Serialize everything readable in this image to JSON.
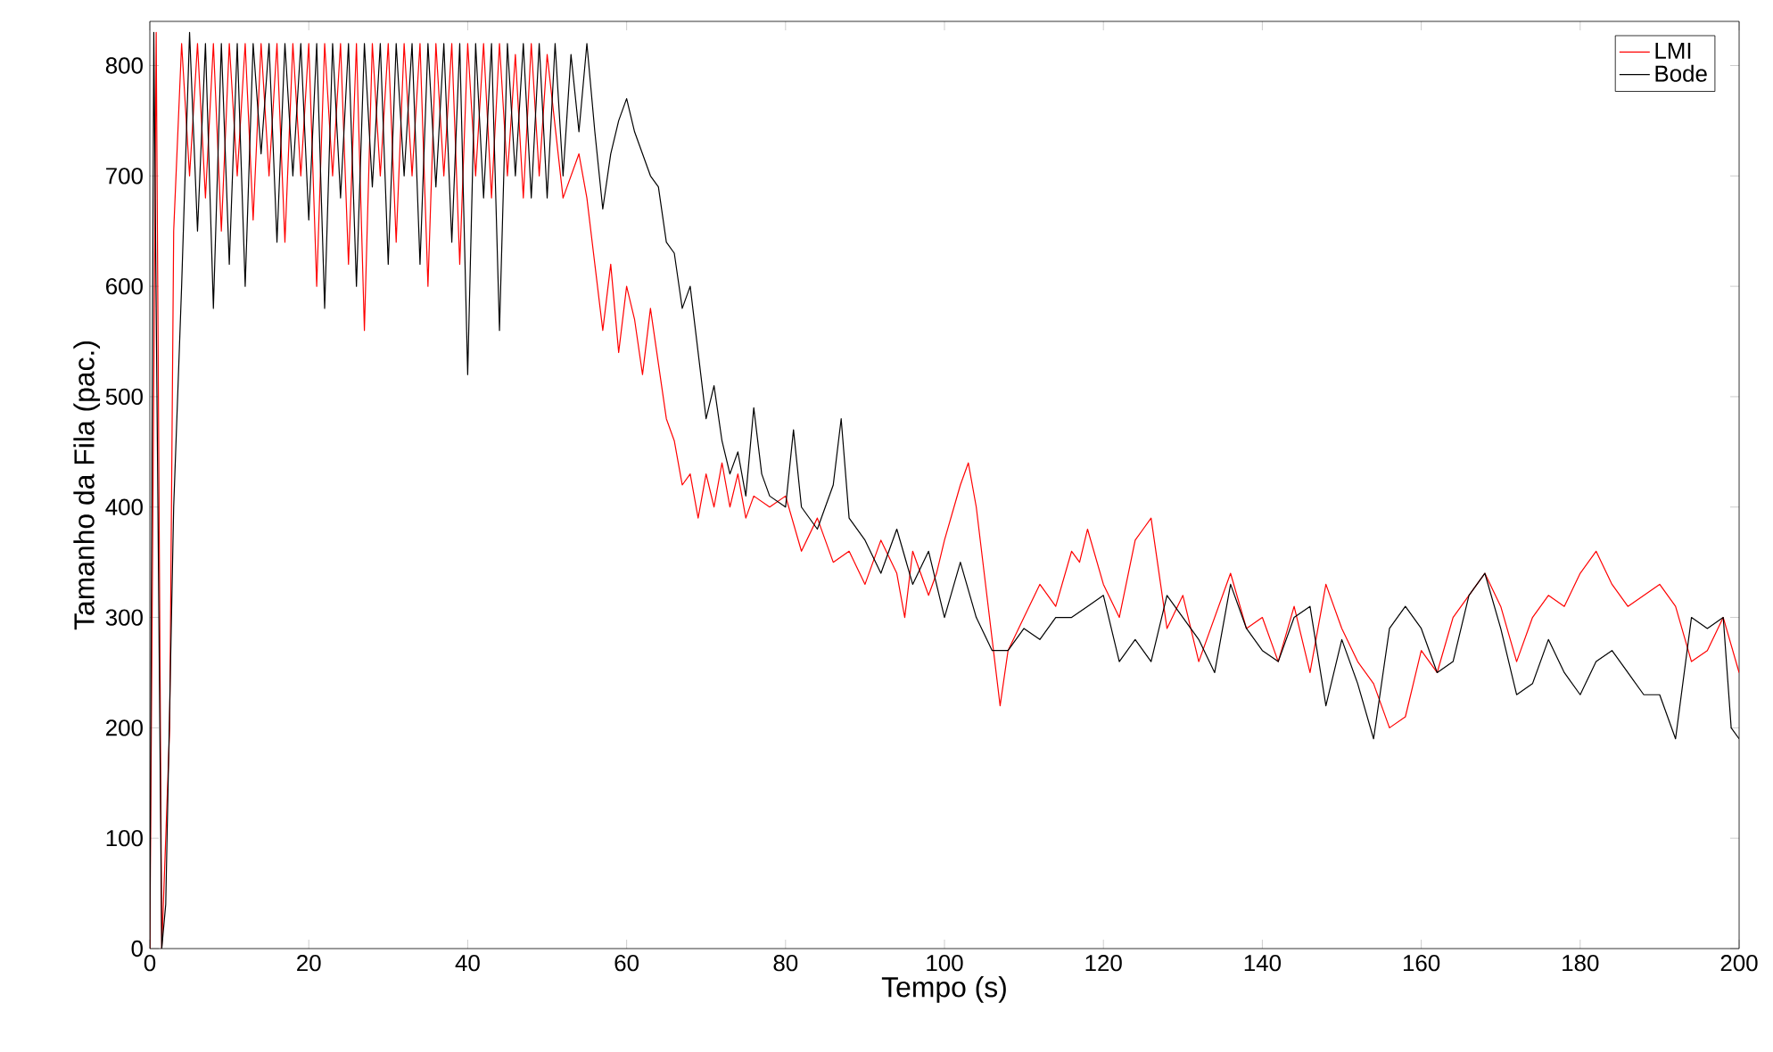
{
  "chart_data": {
    "type": "line",
    "xlabel": "Tempo (s)",
    "ylabel": "Tamanho da Fila (pac.)",
    "xlim": [
      0,
      200
    ],
    "ylim": [
      0,
      840
    ],
    "xticks": [
      0,
      20,
      40,
      60,
      80,
      100,
      120,
      140,
      160,
      180,
      200
    ],
    "yticks": [
      0,
      100,
      200,
      300,
      400,
      500,
      600,
      700,
      800
    ],
    "grid": false,
    "legend": "top right",
    "marker": "none",
    "line_style": "solid",
    "series": [
      {
        "name": "LMI",
        "color": "#ff0000",
        "x": [
          0,
          0.8,
          1.5,
          2.5,
          3,
          4,
          5,
          6,
          7,
          8,
          9,
          10,
          11,
          12,
          13,
          14,
          15,
          16,
          17,
          18,
          19,
          20,
          21,
          22,
          23,
          24,
          25,
          26,
          27,
          28,
          29,
          30,
          31,
          32,
          33,
          34,
          35,
          36,
          37,
          38,
          39,
          40,
          41,
          42,
          43,
          44,
          45,
          46,
          47,
          48,
          49,
          50,
          52,
          54,
          55,
          56,
          57,
          58,
          59,
          60,
          61,
          62,
          63,
          64,
          65,
          66,
          67,
          68,
          69,
          70,
          71,
          72,
          73,
          74,
          75,
          76,
          78,
          80,
          82,
          84,
          86,
          88,
          90,
          92,
          94,
          95,
          96,
          98,
          99,
          100,
          102,
          103,
          104,
          105,
          107,
          108,
          110,
          112,
          114,
          116,
          117,
          118,
          120,
          122,
          124,
          125,
          126,
          128,
          130,
          132,
          134,
          136,
          138,
          140,
          142,
          144,
          146,
          148,
          150,
          152,
          154,
          156,
          158,
          160,
          162,
          164,
          166,
          168,
          170,
          172,
          174,
          176,
          178,
          180,
          182,
          184,
          186,
          188,
          190,
          192,
          194,
          196,
          198,
          200
        ],
        "values": [
          0,
          830,
          0,
          200,
          650,
          820,
          700,
          820,
          680,
          820,
          650,
          820,
          700,
          820,
          660,
          820,
          700,
          820,
          640,
          820,
          700,
          820,
          600,
          820,
          700,
          820,
          620,
          820,
          560,
          820,
          700,
          820,
          640,
          820,
          700,
          820,
          600,
          820,
          700,
          820,
          620,
          820,
          700,
          820,
          680,
          820,
          700,
          810,
          680,
          820,
          700,
          810,
          680,
          720,
          680,
          620,
          560,
          620,
          540,
          600,
          570,
          520,
          580,
          530,
          480,
          460,
          420,
          430,
          390,
          430,
          400,
          440,
          400,
          430,
          390,
          410,
          400,
          410,
          360,
          390,
          350,
          360,
          330,
          370,
          340,
          300,
          360,
          320,
          340,
          370,
          420,
          440,
          400,
          340,
          220,
          270,
          300,
          330,
          310,
          360,
          350,
          380,
          330,
          300,
          370,
          380,
          390,
          290,
          320,
          260,
          300,
          340,
          290,
          300,
          260,
          310,
          250,
          330,
          290,
          260,
          240,
          200,
          210,
          270,
          250,
          300,
          320,
          340,
          310,
          260,
          300,
          320,
          310,
          340,
          360,
          330,
          310,
          320,
          330,
          310,
          260,
          270,
          300,
          250
        ]
      },
      {
        "name": "Bode",
        "color": "#000000",
        "x": [
          0,
          0.5,
          1.5,
          2,
          3,
          4,
          5,
          6,
          7,
          8,
          9,
          10,
          11,
          12,
          13,
          14,
          15,
          16,
          17,
          18,
          19,
          20,
          21,
          22,
          23,
          24,
          25,
          26,
          27,
          28,
          29,
          30,
          31,
          32,
          33,
          34,
          35,
          36,
          37,
          38,
          39,
          40,
          41,
          42,
          43,
          44,
          45,
          46,
          47,
          48,
          49,
          50,
          51,
          52,
          53,
          54,
          55,
          56,
          57,
          58,
          59,
          60,
          61,
          62,
          63,
          64,
          65,
          66,
          67,
          68,
          69,
          70,
          71,
          72,
          73,
          74,
          75,
          76,
          77,
          78,
          80,
          81,
          82,
          84,
          86,
          87,
          88,
          90,
          92,
          94,
          96,
          98,
          100,
          102,
          104,
          106,
          108,
          110,
          112,
          114,
          116,
          118,
          120,
          122,
          124,
          126,
          128,
          130,
          132,
          134,
          136,
          138,
          140,
          142,
          144,
          146,
          148,
          150,
          152,
          154,
          156,
          158,
          160,
          162,
          164,
          166,
          168,
          170,
          172,
          174,
          176,
          178,
          180,
          182,
          184,
          186,
          188,
          190,
          192,
          194,
          196,
          198,
          199,
          200
        ],
        "values": [
          0,
          830,
          0,
          40,
          400,
          600,
          830,
          650,
          820,
          580,
          820,
          620,
          820,
          600,
          820,
          720,
          820,
          640,
          820,
          700,
          820,
          660,
          820,
          580,
          820,
          680,
          820,
          600,
          820,
          690,
          820,
          620,
          820,
          700,
          820,
          620,
          820,
          690,
          820,
          640,
          820,
          520,
          820,
          680,
          820,
          560,
          820,
          700,
          820,
          680,
          820,
          680,
          820,
          700,
          810,
          740,
          820,
          740,
          670,
          720,
          750,
          770,
          740,
          720,
          700,
          690,
          640,
          630,
          580,
          600,
          540,
          480,
          510,
          460,
          430,
          450,
          410,
          490,
          430,
          410,
          400,
          470,
          400,
          380,
          420,
          480,
          390,
          370,
          340,
          380,
          330,
          360,
          300,
          350,
          300,
          270,
          270,
          290,
          280,
          300,
          300,
          310,
          320,
          260,
          280,
          260,
          320,
          300,
          280,
          250,
          330,
          290,
          270,
          260,
          300,
          310,
          220,
          280,
          240,
          190,
          290,
          310,
          290,
          250,
          260,
          320,
          340,
          290,
          230,
          240,
          280,
          250,
          230,
          260,
          270,
          250,
          230,
          230,
          190,
          300,
          290,
          300,
          200,
          190
        ]
      }
    ]
  }
}
